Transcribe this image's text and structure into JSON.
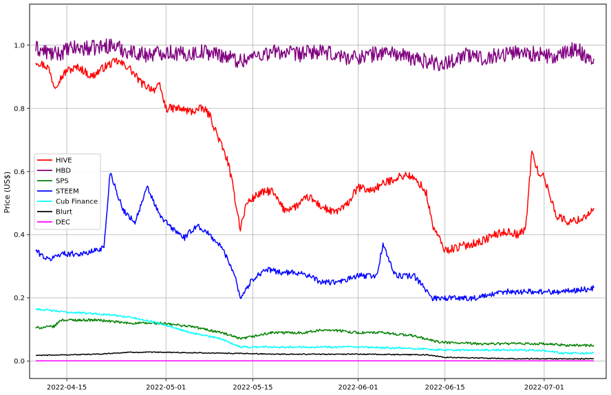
{
  "chart_data": {
    "type": "line",
    "title": "",
    "xlabel": "",
    "ylabel": "Price (US$)",
    "xlim": [
      "2022-04-09",
      "2022-07-11"
    ],
    "ylim": [
      -0.055,
      1.13
    ],
    "grid": true,
    "legend_position": "center-left",
    "x_ticks": [
      "2022-04-15",
      "2022-05-01",
      "2022-05-15",
      "2022-06-01",
      "2022-06-15",
      "2022-07-01"
    ],
    "y_ticks": [
      "0.0",
      "0.2",
      "0.4",
      "0.6",
      "0.8",
      "1.0"
    ],
    "series": [
      {
        "name": "HIVE",
        "color": "#ff0000",
        "x": [
          "2022-04-10",
          "2022-04-12",
          "2022-04-13",
          "2022-04-15",
          "2022-04-17",
          "2022-04-19",
          "2022-04-21",
          "2022-04-23",
          "2022-04-25",
          "2022-04-27",
          "2022-04-29",
          "2022-04-30",
          "2022-05-01",
          "2022-05-03",
          "2022-05-05",
          "2022-05-07",
          "2022-05-08",
          "2022-05-10",
          "2022-05-11",
          "2022-05-12",
          "2022-05-13",
          "2022-05-14",
          "2022-05-16",
          "2022-05-18",
          "2022-05-20",
          "2022-05-22",
          "2022-05-24",
          "2022-05-26",
          "2022-05-28",
          "2022-05-30",
          "2022-06-01",
          "2022-06-03",
          "2022-06-05",
          "2022-06-07",
          "2022-06-09",
          "2022-06-11",
          "2022-06-12",
          "2022-06-13",
          "2022-06-15",
          "2022-06-17",
          "2022-06-19",
          "2022-06-21",
          "2022-06-23",
          "2022-06-25",
          "2022-06-27",
          "2022-06-28",
          "2022-06-29",
          "2022-06-30",
          "2022-07-01",
          "2022-07-03",
          "2022-07-05",
          "2022-07-07",
          "2022-07-09"
        ],
        "values": [
          0.95,
          0.93,
          0.87,
          0.92,
          0.93,
          0.9,
          0.93,
          0.95,
          0.93,
          0.88,
          0.86,
          0.87,
          0.8,
          0.8,
          0.79,
          0.8,
          0.78,
          0.68,
          0.63,
          0.53,
          0.42,
          0.5,
          0.53,
          0.54,
          0.48,
          0.49,
          0.52,
          0.49,
          0.47,
          0.49,
          0.55,
          0.54,
          0.56,
          0.58,
          0.59,
          0.56,
          0.53,
          0.43,
          0.35,
          0.36,
          0.37,
          0.38,
          0.4,
          0.41,
          0.4,
          0.42,
          0.66,
          0.6,
          0.58,
          0.46,
          0.44,
          0.45,
          0.48
        ]
      },
      {
        "name": "HBD",
        "color": "#800080",
        "x": [
          "2022-04-10",
          "2022-04-13",
          "2022-04-16",
          "2022-04-19",
          "2022-04-22",
          "2022-04-25",
          "2022-04-28",
          "2022-05-01",
          "2022-05-04",
          "2022-05-07",
          "2022-05-10",
          "2022-05-13",
          "2022-05-16",
          "2022-05-19",
          "2022-05-22",
          "2022-05-25",
          "2022-05-28",
          "2022-05-31",
          "2022-06-03",
          "2022-06-06",
          "2022-06-09",
          "2022-06-12",
          "2022-06-15",
          "2022-06-18",
          "2022-06-21",
          "2022-06-24",
          "2022-06-27",
          "2022-06-30",
          "2022-07-03",
          "2022-07-06",
          "2022-07-09"
        ],
        "values": [
          0.99,
          0.97,
          0.99,
          0.99,
          1.0,
          0.98,
          0.97,
          0.98,
          0.97,
          0.98,
          0.97,
          0.95,
          0.97,
          0.98,
          0.97,
          0.98,
          0.97,
          0.96,
          0.97,
          0.98,
          0.96,
          0.95,
          0.94,
          0.97,
          0.96,
          0.97,
          0.98,
          0.97,
          0.96,
          0.99,
          0.95
        ]
      },
      {
        "name": "SPS",
        "color": "#008000",
        "x": [
          "2022-04-10",
          "2022-04-13",
          "2022-04-14",
          "2022-04-16",
          "2022-04-20",
          "2022-04-25",
          "2022-04-30",
          "2022-05-05",
          "2022-05-10",
          "2022-05-13",
          "2022-05-18",
          "2022-05-23",
          "2022-05-27",
          "2022-06-01",
          "2022-06-05",
          "2022-06-10",
          "2022-06-14",
          "2022-06-20",
          "2022-06-25",
          "2022-06-30",
          "2022-07-05",
          "2022-07-09"
        ],
        "values": [
          0.105,
          0.11,
          0.13,
          0.13,
          0.13,
          0.12,
          0.12,
          0.11,
          0.09,
          0.07,
          0.09,
          0.09,
          0.1,
          0.09,
          0.09,
          0.08,
          0.06,
          0.055,
          0.055,
          0.055,
          0.05,
          0.05
        ]
      },
      {
        "name": "STEEM",
        "color": "#0000ff",
        "x": [
          "2022-04-10",
          "2022-04-12",
          "2022-04-14",
          "2022-04-18",
          "2022-04-21",
          "2022-04-22",
          "2022-04-24",
          "2022-04-26",
          "2022-04-28",
          "2022-04-30",
          "2022-05-02",
          "2022-05-04",
          "2022-05-06",
          "2022-05-08",
          "2022-05-10",
          "2022-05-12",
          "2022-05-13",
          "2022-05-15",
          "2022-05-17",
          "2022-05-20",
          "2022-05-23",
          "2022-05-26",
          "2022-05-29",
          "2022-06-01",
          "2022-06-04",
          "2022-06-05",
          "2022-06-07",
          "2022-06-10",
          "2022-06-13",
          "2022-06-15",
          "2022-06-20",
          "2022-06-25",
          "2022-06-30",
          "2022-07-04",
          "2022-07-09"
        ],
        "values": [
          0.35,
          0.32,
          0.34,
          0.34,
          0.36,
          0.6,
          0.48,
          0.44,
          0.55,
          0.46,
          0.42,
          0.39,
          0.43,
          0.4,
          0.36,
          0.28,
          0.2,
          0.26,
          0.29,
          0.28,
          0.28,
          0.25,
          0.25,
          0.27,
          0.27,
          0.37,
          0.27,
          0.27,
          0.2,
          0.2,
          0.2,
          0.22,
          0.22,
          0.22,
          0.23
        ]
      },
      {
        "name": "Cub Finance",
        "color": "#00ffff",
        "x": [
          "2022-04-10",
          "2022-04-15",
          "2022-04-20",
          "2022-04-25",
          "2022-04-30",
          "2022-05-05",
          "2022-05-10",
          "2022-05-13",
          "2022-05-20",
          "2022-05-30",
          "2022-06-10",
          "2022-06-15",
          "2022-06-30",
          "2022-07-04",
          "2022-07-09"
        ],
        "values": [
          0.165,
          0.155,
          0.15,
          0.14,
          0.12,
          0.09,
          0.07,
          0.045,
          0.045,
          0.045,
          0.04,
          0.035,
          0.035,
          0.025,
          0.025
        ]
      },
      {
        "name": "Blurt",
        "color": "#000000",
        "x": [
          "2022-04-10",
          "2022-04-20",
          "2022-04-25",
          "2022-05-01",
          "2022-05-10",
          "2022-05-20",
          "2022-06-01",
          "2022-06-12",
          "2022-06-15",
          "2022-06-25",
          "2022-07-09"
        ],
        "values": [
          0.018,
          0.022,
          0.028,
          0.028,
          0.025,
          0.022,
          0.022,
          0.02,
          0.012,
          0.008,
          0.007
        ]
      },
      {
        "name": "DEC",
        "color": "#ff00ff",
        "x": [
          "2022-04-10",
          "2022-07-09"
        ],
        "values": [
          0.001,
          0.001
        ]
      }
    ]
  }
}
